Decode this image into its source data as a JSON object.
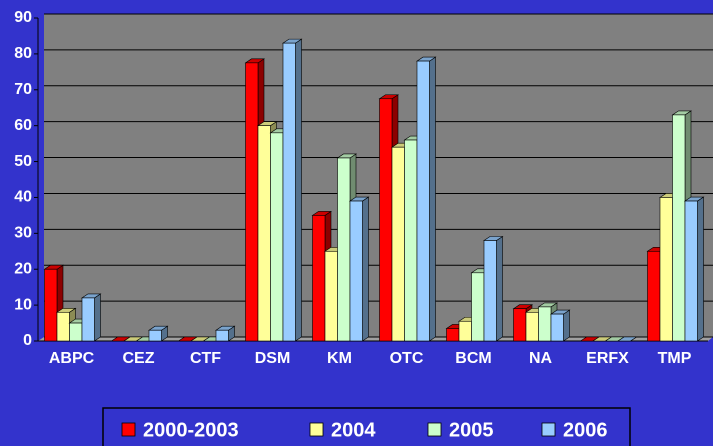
{
  "chart_data": {
    "type": "bar",
    "categories": [
      "ABPC",
      "CEZ",
      "CTF",
      "DSM",
      "KM",
      "OTC",
      "BCM",
      "NA",
      "ERFX",
      "TMP"
    ],
    "series": [
      {
        "name": "2000-2003",
        "color": "#ff0000",
        "values": [
          20,
          0,
          0,
          77.5,
          35,
          67.5,
          3.5,
          9,
          0,
          25
        ]
      },
      {
        "name": "2004",
        "color": "#ffff99",
        "values": [
          8,
          0,
          0,
          60,
          25,
          54,
          5.5,
          8,
          0,
          40
        ]
      },
      {
        "name": "2005",
        "color": "#ccffcc",
        "values": [
          5,
          0,
          0,
          58,
          51,
          56,
          19,
          9.5,
          0,
          63
        ]
      },
      {
        "name": "2006",
        "color": "#99ccff",
        "values": [
          12,
          3,
          3,
          83,
          39,
          78,
          28,
          7.5,
          0,
          39
        ]
      }
    ],
    "ylim": [
      0,
      90
    ],
    "yticks": [
      0,
      10,
      20,
      30,
      40,
      50,
      60,
      70,
      80,
      90
    ],
    "grid": true,
    "legend": "bottom"
  }
}
